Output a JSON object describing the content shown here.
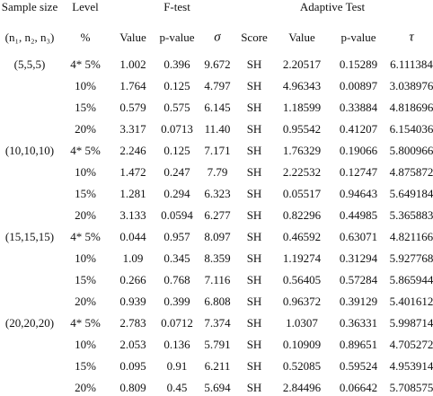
{
  "header": {
    "top": [
      "Sample size",
      "Level",
      "F-test",
      "Adaptive Test"
    ],
    "sub": [
      "(n₁, n₂, n₃)",
      "%",
      "Value",
      "p-value",
      "σ",
      "Score",
      "Value",
      "p-value",
      "τ"
    ]
  },
  "table": {
    "groups": [
      {
        "sample": "(5,5,5)",
        "rows": [
          [
            "4* 5%",
            "1.002",
            "0.396",
            "9.672",
            "SH",
            "2.20517",
            "0.15289",
            "6.111384"
          ],
          [
            "10%",
            "1.764",
            "0.125",
            "4.797",
            "SH",
            "4.96343",
            "0.00897",
            "3.038976"
          ],
          [
            "15%",
            "0.579",
            "0.575",
            "6.145",
            "SH",
            "1.18599",
            "0.33884",
            "4.818696"
          ],
          [
            "20%",
            "3.317",
            "0.0713",
            "11.40",
            "SH",
            "0.95542",
            "0.41207",
            "6.154036"
          ]
        ]
      },
      {
        "sample": "(10,10,10)",
        "rows": [
          [
            "4* 5%",
            "2.246",
            "0.125",
            "7.171",
            "SH",
            "1.76329",
            "0.19066",
            "5.800966"
          ],
          [
            "10%",
            "1.472",
            "0.247",
            "7.79",
            "SH",
            "2.22532",
            "0.12747",
            "4.875872"
          ],
          [
            "15%",
            "1.281",
            "0.294",
            "6.323",
            "SH",
            "0.05517",
            "0.94643",
            "5.649184"
          ],
          [
            "20%",
            "3.133",
            "0.0594",
            "6.277",
            "SH",
            "0.82296",
            "0.44985",
            "5.365883"
          ]
        ]
      },
      {
        "sample": "(15,15,15)",
        "rows": [
          [
            "4* 5%",
            "0.044",
            "0.957",
            "8.097",
            "SH",
            "0.46592",
            "0.63071",
            "4.821166"
          ],
          [
            "10%",
            "1.09",
            "0.345",
            "8.359",
            "SH",
            "1.19274",
            "0.31294",
            "5.927768"
          ],
          [
            "15%",
            "0.266",
            "0.768",
            "7.116",
            "SH",
            "0.56405",
            "0.57284",
            "5.865944"
          ],
          [
            "20%",
            "0.939",
            "0.399",
            "6.808",
            "SH",
            "0.96372",
            "0.39129",
            "5.401612"
          ]
        ]
      },
      {
        "sample": "(20,20,20)",
        "rows": [
          [
            "4* 5%",
            "2.783",
            "0.0712",
            "7.374",
            "SH",
            "1.0307",
            "0.36331",
            "5.998714"
          ],
          [
            "10%",
            "2.053",
            "0.136",
            "5.791",
            "SH",
            "0.10909",
            "0.89651",
            "4.705272"
          ],
          [
            "15%",
            "0.095",
            "0.91",
            "6.211",
            "SH",
            "0.52085",
            "0.59524",
            "4.953914"
          ],
          [
            "20%",
            "0.809",
            "0.45",
            "5.694",
            "SH",
            "2.84496",
            "0.06642",
            "5.708575"
          ]
        ]
      }
    ]
  }
}
